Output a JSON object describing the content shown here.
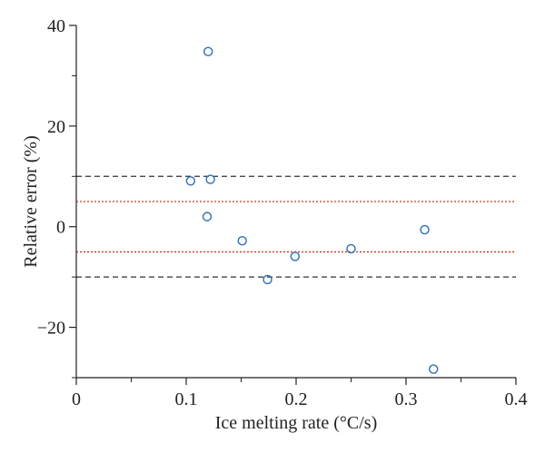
{
  "chart_data": {
    "type": "scatter",
    "xlabel": "Ice melting rate (°C/s)",
    "ylabel": "Relative error (%)",
    "xlim": [
      0,
      0.4
    ],
    "ylim": [
      -30,
      40
    ],
    "x_ticks": [
      {
        "value": 0,
        "label": "0"
      },
      {
        "value": 0.1,
        "label": "0.1"
      },
      {
        "value": 0.2,
        "label": "0.2"
      },
      {
        "value": 0.3,
        "label": "0.3"
      },
      {
        "value": 0.4,
        "label": "0.4"
      }
    ],
    "x_minor_ticks": [
      0.05,
      0.15,
      0.25,
      0.35
    ],
    "y_ticks": [
      {
        "value": 40,
        "label": "40"
      },
      {
        "value": 20,
        "label": "20"
      },
      {
        "value": 0,
        "label": "0"
      },
      {
        "value": -20,
        "label": "−20"
      }
    ],
    "y_minor_ticks": [
      30,
      10,
      -10,
      -30
    ],
    "grid": false,
    "legend": "none",
    "points": [
      {
        "x": 0.12,
        "y": 34.8
      },
      {
        "x": 0.104,
        "y": 9.1
      },
      {
        "x": 0.122,
        "y": 9.4
      },
      {
        "x": 0.119,
        "y": 2.0
      },
      {
        "x": 0.151,
        "y": -2.8
      },
      {
        "x": 0.174,
        "y": -10.5
      },
      {
        "x": 0.199,
        "y": -5.9
      },
      {
        "x": 0.25,
        "y": -4.4
      },
      {
        "x": 0.317,
        "y": -0.6
      },
      {
        "x": 0.325,
        "y": -28.3
      }
    ],
    "reference_lines": [
      {
        "y": 10,
        "style": "dashed",
        "color": "#333333"
      },
      {
        "y": 5,
        "style": "dotted",
        "color": "#cc3a1a"
      },
      {
        "y": -5,
        "style": "dotted",
        "color": "#cc3a1a"
      },
      {
        "y": -10,
        "style": "dashed",
        "color": "#333333"
      }
    ],
    "marker_color": "#2a6fb5"
  }
}
